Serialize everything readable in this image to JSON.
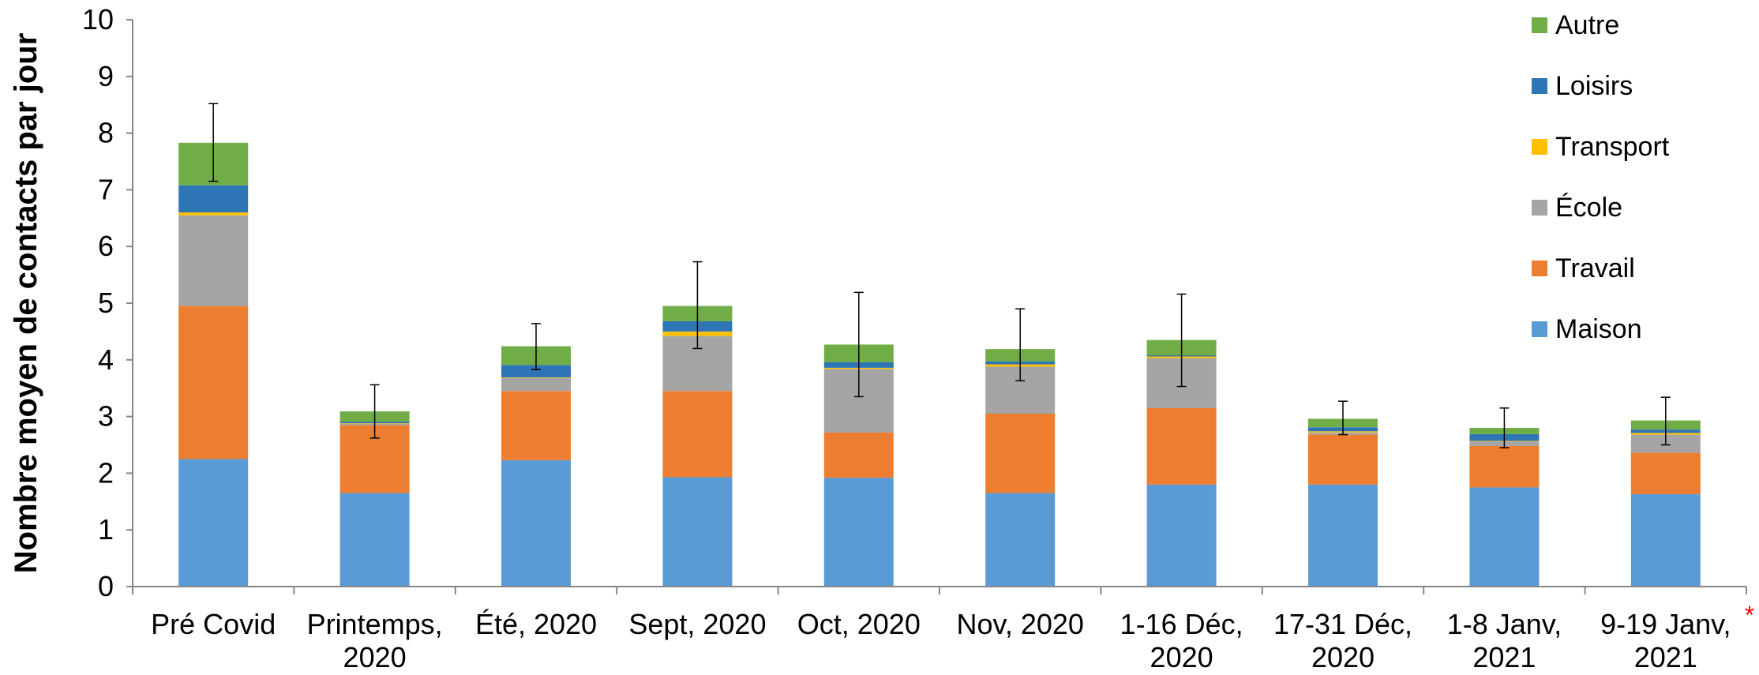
{
  "chart_data": {
    "type": "bar",
    "stacked": true,
    "ylabel": "Nombre moyen de contacts par jour",
    "ylim": [
      0,
      10
    ],
    "yticks": [
      0,
      1,
      2,
      3,
      4,
      5,
      6,
      7,
      8,
      9,
      10
    ],
    "categories": [
      [
        "Pré Covid"
      ],
      [
        "Printemps,",
        "2020"
      ],
      [
        "Été, 2020"
      ],
      [
        "Sept, 2020"
      ],
      [
        "Oct, 2020"
      ],
      [
        "Nov, 2020"
      ],
      [
        "1-16 Déc,",
        "2020"
      ],
      [
        "17-31 Déc,",
        "2020"
      ],
      [
        "1-8 Janv,",
        "2021"
      ],
      [
        "9-19 Janv,",
        "2021"
      ]
    ],
    "annotation": {
      "category_index": 9,
      "text": "*",
      "color": "#ff0000"
    },
    "series": [
      {
        "name": "Maison",
        "color": "#5b9bd5",
        "values": [
          2.25,
          1.65,
          2.23,
          1.93,
          1.92,
          1.65,
          1.8,
          1.8,
          1.75,
          1.63
        ]
      },
      {
        "name": "Travail",
        "color": "#ed7d31",
        "values": [
          2.7,
          1.2,
          1.22,
          1.52,
          0.8,
          1.4,
          1.35,
          0.88,
          0.73,
          0.73
        ]
      },
      {
        "name": "École",
        "color": "#a5a5a5",
        "values": [
          1.6,
          0.02,
          0.23,
          0.97,
          1.12,
          0.83,
          0.88,
          0.04,
          0.08,
          0.32
        ]
      },
      {
        "name": "Transport",
        "color": "#ffc000",
        "values": [
          0.05,
          0.01,
          0.01,
          0.08,
          0.02,
          0.04,
          0.03,
          0.02,
          0.01,
          0.03
        ]
      },
      {
        "name": "Loisirs",
        "color": "#2e75b6",
        "values": [
          0.48,
          0.03,
          0.22,
          0.18,
          0.1,
          0.05,
          0.02,
          0.07,
          0.12,
          0.06
        ]
      },
      {
        "name": "Autre",
        "color": "#70ad47",
        "values": [
          0.75,
          0.18,
          0.33,
          0.27,
          0.31,
          0.22,
          0.27,
          0.15,
          0.11,
          0.16
        ]
      }
    ],
    "error_bars": {
      "center": [
        7.83,
        3.09,
        4.24,
        4.95,
        4.27,
        4.19,
        4.35,
        2.96,
        2.8,
        2.93
      ],
      "low": [
        7.15,
        2.62,
        3.83,
        4.2,
        3.35,
        3.63,
        3.53,
        2.68,
        2.45,
        2.5
      ],
      "high": [
        8.52,
        3.56,
        4.64,
        5.73,
        5.19,
        4.9,
        5.16,
        3.27,
        3.15,
        3.34
      ]
    },
    "legend": {
      "position": "top-right",
      "order": [
        "Autre",
        "Loisirs",
        "Transport",
        "École",
        "Travail",
        "Maison"
      ]
    },
    "grid": false
  }
}
